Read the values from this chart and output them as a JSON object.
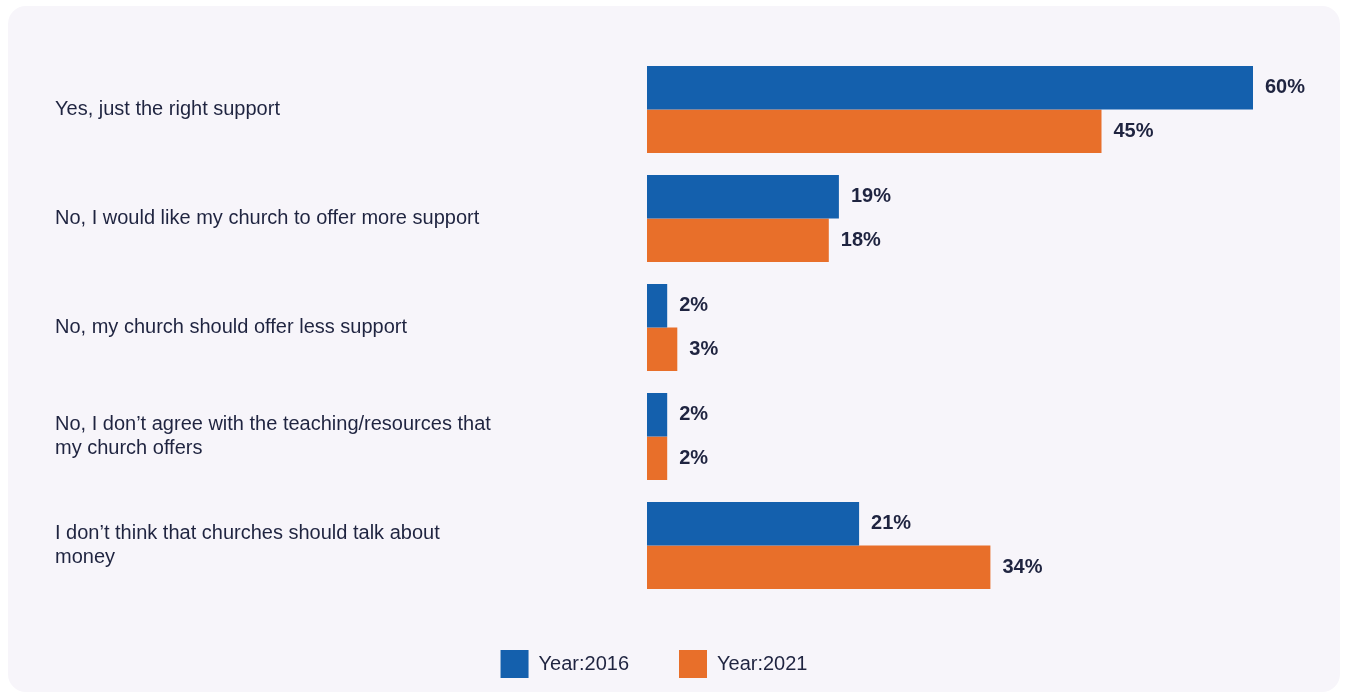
{
  "chart_data": {
    "type": "bar",
    "orientation": "horizontal",
    "categories": [
      "Yes, just the right support",
      "No, I would like my church to offer more support",
      "No, my church should offer less support",
      "No, I don’t agree with the teaching/resources that my church offers",
      "I don’t think that churches should talk about money"
    ],
    "series": [
      {
        "name": "Year:2016",
        "color": "#1460ad",
        "values": [
          60,
          19,
          2,
          2,
          21
        ],
        "value_labels": [
          "60%",
          "19%",
          "2%",
          "2%",
          "21%"
        ]
      },
      {
        "name": "Year:2021",
        "color": "#e86f2a",
        "values": [
          45,
          18,
          3,
          2,
          34
        ],
        "value_labels": [
          "45%",
          "18%",
          "3%",
          "2%",
          "34%"
        ]
      }
    ],
    "legend": "bottom",
    "tick_labels": "y"
  }
}
